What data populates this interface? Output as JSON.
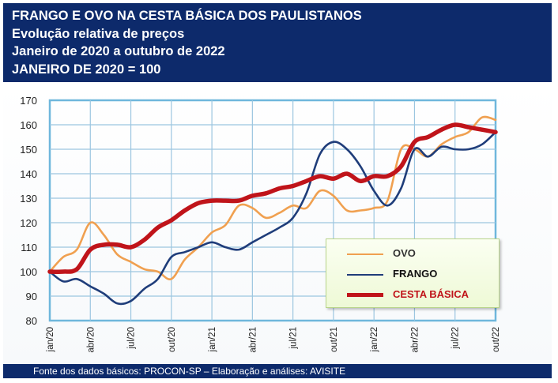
{
  "header": {
    "line1": "FRANGO E OVO NA CESTA BÁSICA DOS PAULISTANOS",
    "line2": "Evolução relativa de preços",
    "line3": "Janeiro de 2020 a outubro de 2022",
    "line4": "JANEIRO DE 2020 = 100"
  },
  "footer": {
    "text": "Fonte dos dados básicos: PROCON-SP – Elaboração e análises: AVISITE"
  },
  "legend": {
    "ovo": "OVO",
    "frango": "FRANGO",
    "cesta": "CESTA BÁSICA"
  },
  "colors": {
    "header_bg": "#0d2a6b",
    "ovo": "#f0a050",
    "frango": "#1f3d7a",
    "cesta": "#c0141a",
    "cesta_label": "#c0141a",
    "frame": "#6fb7dc",
    "grid": "#9cc6e0"
  },
  "chart_data": {
    "type": "line",
    "title": "FRANGO E OVO NA CESTA BÁSICA DOS PAULISTANOS",
    "ylim": [
      80,
      170
    ],
    "yticks": [
      80,
      90,
      100,
      110,
      120,
      130,
      140,
      150,
      160,
      170
    ],
    "x": [
      "jan/20",
      "fev/20",
      "mar/20",
      "abr/20",
      "mai/20",
      "jun/20",
      "jul/20",
      "ago/20",
      "set/20",
      "out/20",
      "nov/20",
      "dez/20",
      "jan/21",
      "fev/21",
      "mar/21",
      "abr/21",
      "mai/21",
      "jun/21",
      "jul/21",
      "ago/21",
      "set/21",
      "out/21",
      "nov/21",
      "dez/21",
      "jan/22",
      "fev/22",
      "mar/22",
      "abr/22",
      "mai/22",
      "jun/22",
      "jul/22",
      "ago/22",
      "set/22",
      "out/22"
    ],
    "xtick_labels": [
      "jan/20",
      "abr/20",
      "jul/20",
      "out/20",
      "jan/21",
      "abr/21",
      "jul/21",
      "out/21",
      "jan/22",
      "abr/22",
      "jul/22",
      "out/22"
    ],
    "grid": true,
    "legend_position": "bottom-right",
    "series": [
      {
        "name": "OVO",
        "values": [
          100,
          106,
          109,
          120,
          115,
          107,
          104,
          101,
          100,
          97,
          105,
          110,
          116,
          119,
          127,
          126,
          122,
          124,
          127,
          126,
          133,
          131,
          125,
          125,
          126,
          129,
          150,
          150,
          147,
          152,
          155,
          157,
          163,
          162
        ]
      },
      {
        "name": "FRANGO",
        "values": [
          100,
          96,
          97,
          94,
          91,
          87,
          88,
          93,
          97,
          106,
          108,
          110,
          112,
          110,
          109,
          112,
          115,
          118,
          122,
          132,
          148,
          153,
          150,
          143,
          133,
          127,
          134,
          150,
          147,
          151,
          150,
          150,
          152,
          157
        ]
      },
      {
        "name": "CESTA BÁSICA",
        "values": [
          100,
          100,
          101,
          109,
          111,
          111,
          110,
          113,
          118,
          121,
          125,
          128,
          129,
          129,
          129,
          131,
          132,
          134,
          135,
          137,
          139,
          138,
          140,
          137,
          139,
          139,
          143,
          153,
          155,
          158,
          160,
          159,
          158,
          157
        ]
      }
    ]
  }
}
